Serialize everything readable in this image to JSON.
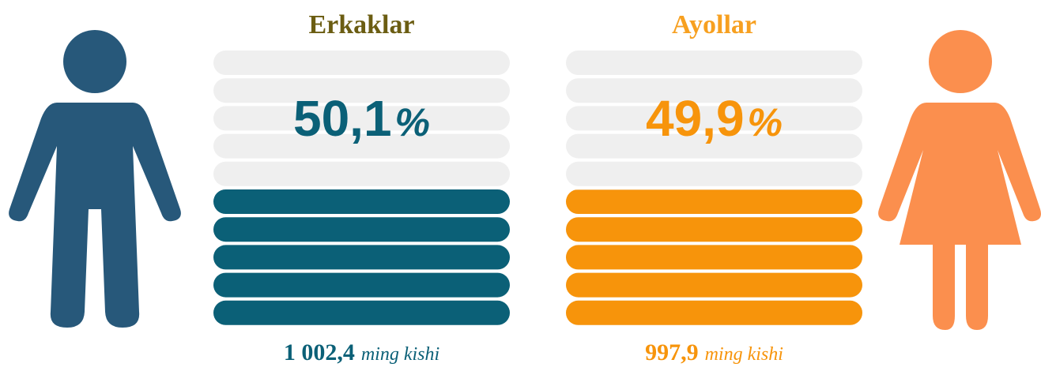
{
  "chart_data": {
    "type": "pictogram-fill",
    "series": [
      {
        "name": "Erkaklar",
        "title_color": "#6b5d12",
        "color": "#0b6077",
        "icon_color": "#27587a",
        "value": 50.1,
        "value_label": "50,1",
        "unit": "%",
        "count": "1 002,4",
        "count_unit": "ming kishi"
      },
      {
        "name": "Ayollar",
        "title_color": "#f7a020",
        "color": "#f7940b",
        "icon_color": "#fb8f4e",
        "value": 49.9,
        "value_label": "49,9",
        "unit": "%",
        "count": "997,9",
        "count_unit": "ming kishi"
      }
    ],
    "ylim": [
      0,
      100
    ]
  }
}
